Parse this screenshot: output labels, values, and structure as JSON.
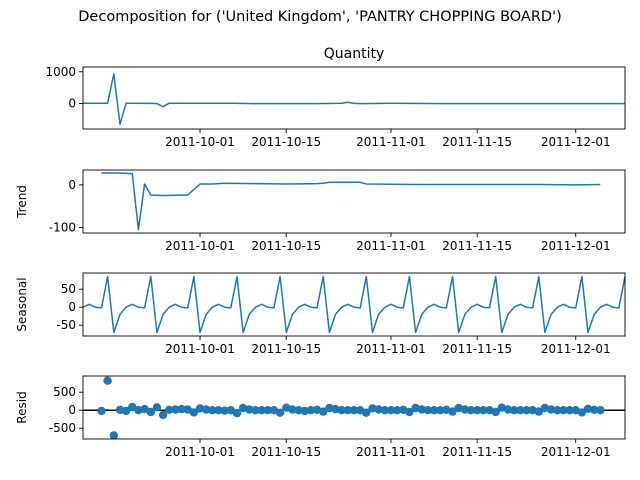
{
  "figure": {
    "suptitle": "Decomposition for ('United Kingdom', 'PANTRY CHOPPING BOARD')"
  },
  "colors": {
    "series": "#1f77b4",
    "axis": "#000000",
    "background": "#ffffff"
  },
  "chart_data": [
    {
      "type": "line",
      "title": "Quantity",
      "ylabel": "",
      "xlim": [
        "2011-09-12",
        "2011-12-09"
      ],
      "ylim": [
        -800,
        1150
      ],
      "yticks": [
        0,
        1000
      ],
      "xticks": [
        "2011-10-01",
        "2011-10-15",
        "2011-11-01",
        "2011-11-15",
        "2011-12-01"
      ],
      "x": [
        "2011-09-12",
        "2011-09-16",
        "2011-09-17",
        "2011-09-18",
        "2011-09-19",
        "2011-09-23",
        "2011-09-24",
        "2011-09-25",
        "2011-09-26",
        "2011-09-27",
        "2011-10-06",
        "2011-10-10",
        "2011-10-20",
        "2011-10-24",
        "2011-10-25",
        "2011-10-26",
        "2011-10-27",
        "2011-11-01",
        "2011-11-10",
        "2011-11-20",
        "2011-12-09"
      ],
      "y": [
        10,
        10,
        930,
        -650,
        10,
        5,
        0,
        -100,
        10,
        10,
        10,
        0,
        0,
        10,
        40,
        5,
        0,
        10,
        0,
        0,
        0
      ]
    },
    {
      "type": "line",
      "title": "",
      "ylabel": "Trend",
      "xlim": [
        "2011-09-12",
        "2011-12-09"
      ],
      "ylim": [
        -113,
        35
      ],
      "yticks": [
        0,
        -100
      ],
      "xticks": [
        "2011-10-01",
        "2011-10-15",
        "2011-11-01",
        "2011-11-15",
        "2011-12-01"
      ],
      "x": [
        "2011-09-15",
        "2011-09-18",
        "2011-09-19",
        "2011-09-20",
        "2011-09-21",
        "2011-09-22",
        "2011-09-23",
        "2011-09-25",
        "2011-09-28",
        "2011-09-29",
        "2011-10-01",
        "2011-10-03",
        "2011-10-05",
        "2011-10-10",
        "2011-10-15",
        "2011-10-20",
        "2011-10-21",
        "2011-10-22",
        "2011-10-27",
        "2011-10-28",
        "2011-11-05",
        "2011-11-10",
        "2011-11-15",
        "2011-11-25",
        "2011-12-01",
        "2011-12-05"
      ],
      "y": [
        28,
        28,
        27,
        26,
        -105,
        2,
        -24,
        -25,
        -24,
        -24,
        2,
        2,
        4,
        3,
        2,
        3,
        4,
        6,
        6,
        2,
        1,
        1,
        1,
        1,
        0,
        1
      ]
    },
    {
      "type": "line",
      "title": "",
      "ylabel": "Seasonal",
      "xlim": [
        "2011-09-12",
        "2011-12-09"
      ],
      "ylim": [
        -80,
        95
      ],
      "yticks": [
        50,
        0,
        -50
      ],
      "xticks": [
        "2011-10-01",
        "2011-10-15",
        "2011-11-01",
        "2011-11-15",
        "2011-12-01"
      ],
      "x_start": "2011-09-12",
      "weekly_pattern": [
        0,
        8,
        0,
        -2,
        85,
        -70,
        -20
      ],
      "x_end": "2011-12-09"
    },
    {
      "type": "scatter",
      "title": "",
      "ylabel": "Resid",
      "xlim": [
        "2011-09-12",
        "2011-12-09"
      ],
      "ylim": [
        -800,
        950
      ],
      "yticks": [
        500,
        0,
        -500
      ],
      "xticks": [
        "2011-10-01",
        "2011-10-15",
        "2011-11-01",
        "2011-11-15",
        "2011-12-01"
      ],
      "baseline": 0,
      "x_start": "2011-09-15",
      "x_end": "2011-12-05",
      "y": [
        -20,
        820,
        -700,
        10,
        -20,
        90,
        0,
        30,
        -50,
        80,
        -130,
        10,
        20,
        30,
        20,
        -60,
        50,
        20,
        0,
        0,
        -10,
        0,
        -80,
        60,
        20,
        0,
        0,
        0,
        0,
        -70,
        70,
        20,
        0,
        -20,
        0,
        10,
        -40,
        60,
        30,
        0,
        0,
        0,
        0,
        -70,
        50,
        20,
        0,
        0,
        0,
        10,
        -50,
        60,
        20,
        0,
        0,
        0,
        10,
        -40,
        60,
        20,
        0,
        0,
        0,
        0,
        -50,
        70,
        20,
        0,
        0,
        0,
        0,
        -40,
        60,
        20,
        0,
        0,
        0,
        0,
        -60,
        40,
        10,
        0
      ]
    }
  ]
}
